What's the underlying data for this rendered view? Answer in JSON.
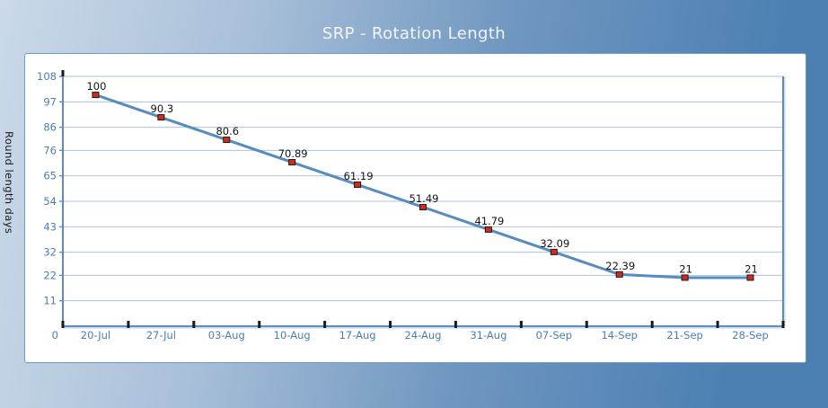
{
  "window": {
    "title": "SRP - Rotation Length"
  },
  "colors": {
    "background_left": "#cbd9e9",
    "background_mid1": "#a9c0d9",
    "background_mid2": "#6f96c0",
    "background_right": "#4c80b3",
    "panel_bg": "#ffffff",
    "panel_border": "#6f9bc6",
    "gridline": "#a9c3de",
    "axis": "#5e8ec1",
    "axis_highlight": "#bdd3e8",
    "tick_label": "#4a7db5",
    "data_label": "#141414",
    "series_line": "#568cbe",
    "marker_fill": "#d42a1e",
    "marker_stroke": "#1a1a1a",
    "black_tick": "#1a1a1a",
    "title_color": "#f2f6fa",
    "ylabel_color": "#1a1a1a"
  },
  "chart_data": {
    "type": "line",
    "title": "SRP - Rotation Length",
    "xlabel": "",
    "ylabel": "Round length days",
    "categories": [
      "20-Jul",
      "27-Jul",
      "03-Aug",
      "10-Aug",
      "17-Aug",
      "24-Aug",
      "31-Aug",
      "07-Sep",
      "14-Sep",
      "21-Sep",
      "28-Sep"
    ],
    "values": [
      100,
      90.3,
      80.6,
      70.89,
      61.19,
      51.49,
      41.79,
      32.09,
      22.39,
      21,
      21
    ],
    "data_labels": [
      "100",
      "90.3",
      "80.6",
      "70.89",
      "61.19",
      "51.49",
      "41.79",
      "32.09",
      "22.39",
      "21",
      "21"
    ],
    "yticks": [
      0,
      11,
      22,
      32,
      43,
      54,
      65,
      76,
      86,
      97,
      108
    ],
    "ylim": [
      0,
      108
    ],
    "grid": "horizontal-only",
    "legend": "none",
    "marker": "red-square",
    "series_name": "Rotation length"
  }
}
